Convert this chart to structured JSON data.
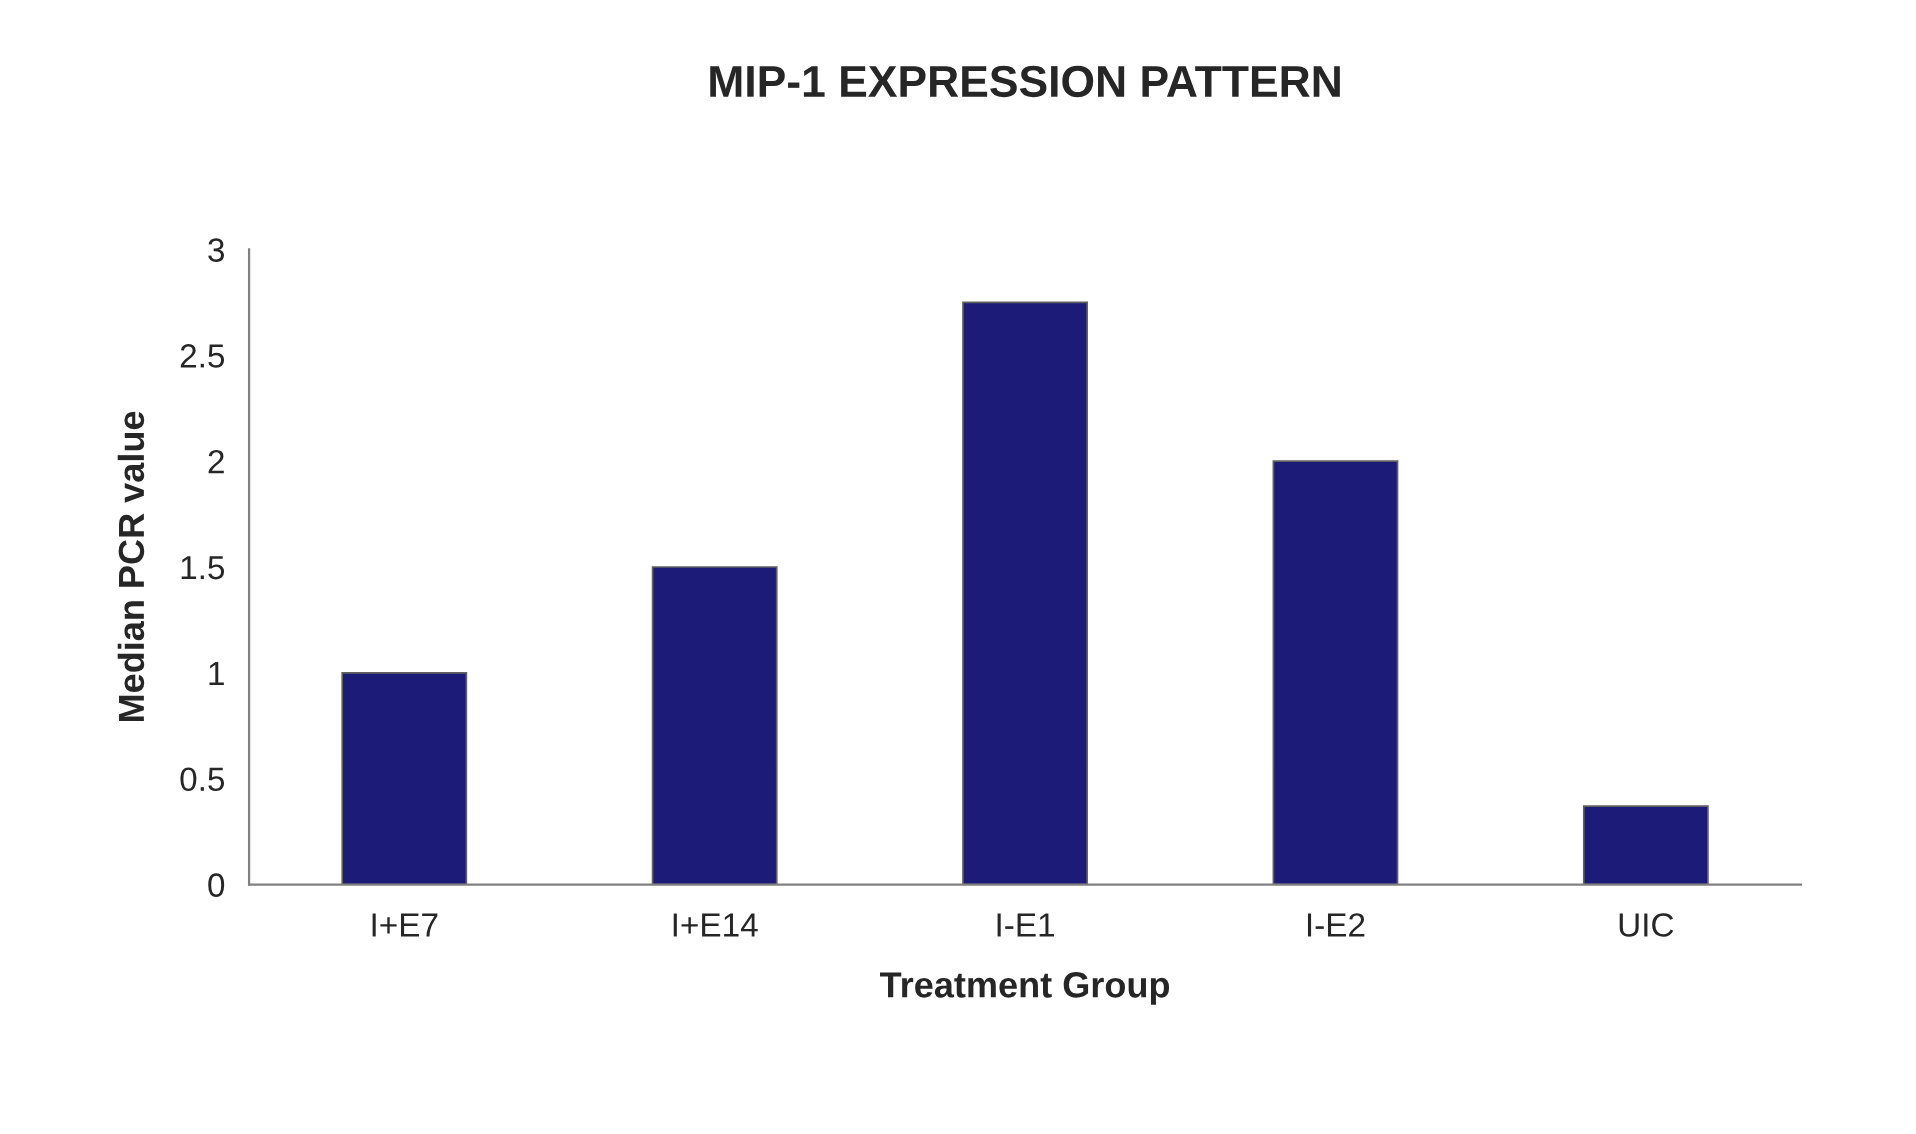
{
  "chart_data": {
    "type": "bar",
    "title": "MIP-1 EXPRESSION PATTERN",
    "xlabel": "Treatment Group",
    "ylabel": "Median PCR value",
    "categories": [
      "I+E7",
      "I+E14",
      "I-E1",
      "I-E2",
      "UIC"
    ],
    "values": [
      1.0,
      1.5,
      2.75,
      2.0,
      0.37
    ],
    "color": "#1c1c78",
    "ylim": [
      0,
      3
    ],
    "yticks": [
      0,
      0.5,
      1,
      1.5,
      2,
      2.5,
      3
    ],
    "grid": false
  }
}
